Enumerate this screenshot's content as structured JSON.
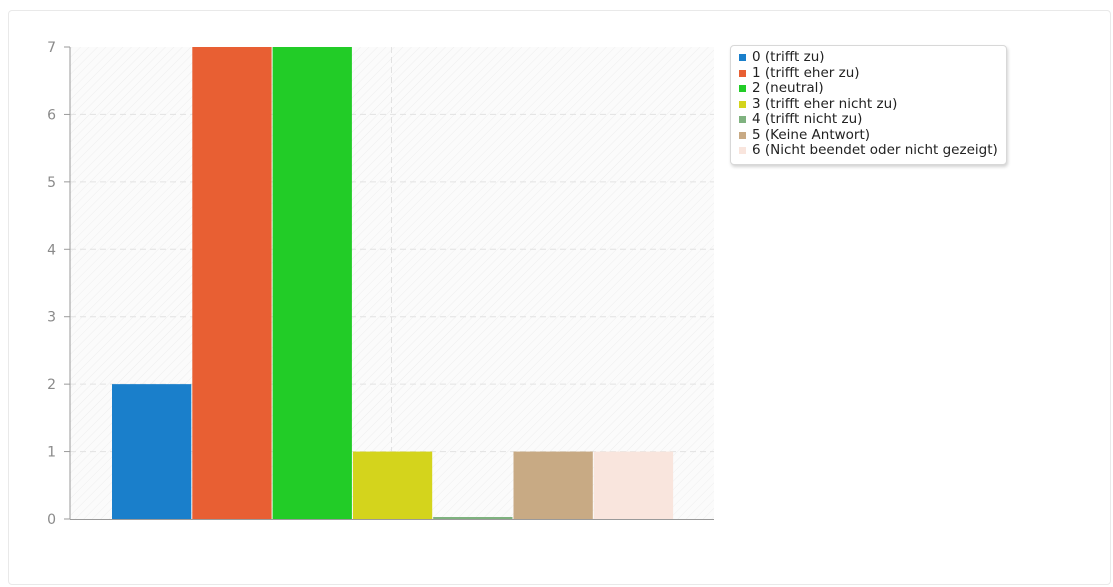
{
  "chart_data": {
    "type": "bar",
    "title": "",
    "xlabel": "",
    "ylabel": "",
    "ylim": [
      0,
      7
    ],
    "yticks": [
      "0",
      "1",
      "2",
      "3",
      "4",
      "5",
      "6",
      "7"
    ],
    "grid": true,
    "legend_position": "top-right",
    "series": [
      {
        "name": "0 (trifft zu)",
        "value": 2,
        "color": "#1a7fcb"
      },
      {
        "name": "1 (trifft eher zu)",
        "value": 7,
        "color": "#e85f33"
      },
      {
        "name": "2 (neutral)",
        "value": 7,
        "color": "#22cc27"
      },
      {
        "name": "3 (trifft eher nicht zu)",
        "value": 1,
        "color": "#d4d41c"
      },
      {
        "name": "4 (trifft nicht zu)",
        "value": 0,
        "color": "#7fb27f"
      },
      {
        "name": "5 (Keine Antwort)",
        "value": 1,
        "color": "#c8aa84"
      },
      {
        "name": "6 (Nicht beendet oder nicht gezeigt)",
        "value": 1,
        "color": "#f9e5dd"
      }
    ]
  }
}
